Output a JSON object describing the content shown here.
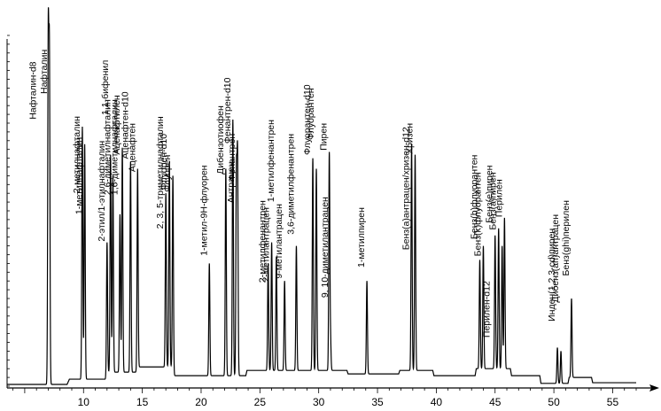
{
  "chart_data": {
    "type": "line",
    "title": "",
    "xlabel": "",
    "ylabel": "",
    "xlim": [
      3.5,
      57
    ],
    "ylim": [
      0,
      100
    ],
    "x_ticks": [
      {
        "value": 5,
        "label": ""
      },
      {
        "value": 10,
        "label": "10"
      },
      {
        "value": 15,
        "label": "15"
      },
      {
        "value": 20,
        "label": "20"
      },
      {
        "value": 25,
        "label": "25"
      },
      {
        "value": 30,
        "label": "30"
      },
      {
        "value": 35,
        "label": "35"
      },
      {
        "value": 40,
        "label": "40"
      },
      {
        "value": 45,
        "label": "45"
      },
      {
        "value": 50,
        "label": "50"
      },
      {
        "value": 55,
        "label": "55"
      }
    ],
    "grid": false,
    "baseline": [
      [
        3.5,
        0.5
      ],
      [
        8.6,
        0.5
      ],
      [
        8.8,
        2.0
      ],
      [
        11.9,
        2.0
      ],
      [
        12.0,
        4.0
      ],
      [
        14.5,
        4.0
      ],
      [
        14.6,
        5.5
      ],
      [
        17.5,
        5.5
      ],
      [
        17.7,
        3.0
      ],
      [
        23.8,
        3.0
      ],
      [
        23.9,
        4.5
      ],
      [
        32.4,
        4.5
      ],
      [
        32.5,
        3.5
      ],
      [
        36.8,
        3.5
      ],
      [
        36.9,
        4.5
      ],
      [
        39.7,
        4.5
      ],
      [
        39.8,
        3.0
      ],
      [
        43.3,
        3.0
      ],
      [
        43.4,
        5.0
      ],
      [
        46.3,
        5.0
      ],
      [
        46.4,
        3.0
      ],
      [
        48.8,
        3.0
      ],
      [
        48.9,
        0.8
      ],
      [
        51.2,
        0.8
      ],
      [
        51.3,
        2.5
      ],
      [
        53.2,
        2.5
      ],
      [
        53.3,
        1.0
      ],
      [
        57,
        1.0
      ]
    ],
    "peaks": [
      {
        "label": "Нафталин-d8",
        "rt": 7.0,
        "height": 98,
        "label_y": 100,
        "anchor": "top-left"
      },
      {
        "label": "Нафталин",
        "rt": 7.1,
        "height": 92,
        "label_y": 96,
        "anchor": "right"
      },
      {
        "label": "2-метилнафталин",
        "rt": 9.9,
        "height": 74,
        "label_y": 77,
        "anchor": "right"
      },
      {
        "label": "1-метилнафталин",
        "rt": 10.1,
        "height": 69,
        "label_y": 71,
        "anchor": "right"
      },
      {
        "label": "2-этил/1-этилнафталин",
        "rt": 12.0,
        "height": 41,
        "label_y": 70,
        "anchor": "right"
      },
      {
        "label": "1,1-бифенил",
        "rt": 12.3,
        "height": 66,
        "label_y": 93,
        "anchor": "right"
      },
      {
        "label": "2,6-диметилнафталин",
        "rt": 12.5,
        "height": 60,
        "label_y": 88,
        "anchor": "right"
      },
      {
        "label": "1,6-диметилнафталин",
        "rt": 13.1,
        "height": 49,
        "label_y": 85,
        "anchor": "right"
      },
      {
        "label": "Аценафтилен",
        "rt": 13.3,
        "height": 68,
        "label_y": 83,
        "anchor": "right"
      },
      {
        "label": "Аценафтен-d10",
        "rt": 14.0,
        "height": 64,
        "label_y": 84,
        "anchor": "right"
      },
      {
        "label": "Аценафтен",
        "rt": 14.6,
        "height": 62,
        "label_y": 75,
        "anchor": "right"
      },
      {
        "label": "2, 3, 5-триметилнафталин",
        "rt": 17.0,
        "height": 55,
        "label_y": 78,
        "anchor": "right"
      },
      {
        "label": "Флуорен-d10",
        "rt": 17.3,
        "height": 64,
        "label_y": 72,
        "anchor": "right"
      },
      {
        "label": "Флуорен",
        "rt": 17.6,
        "height": 60,
        "label_y": 66,
        "anchor": "right"
      },
      {
        "label": "1-метил-9Н-флуорен",
        "rt": 20.7,
        "height": 35,
        "label_y": 63,
        "anchor": "right"
      },
      {
        "label": "Дибензотиофен",
        "rt": 22.1,
        "height": 62,
        "label_y": 80,
        "anchor": "right"
      },
      {
        "label": "Фенантрен-d10",
        "rt": 22.7,
        "height": 76,
        "label_y": 88,
        "anchor": "right"
      },
      {
        "label": "Фенантрен",
        "rt": 23.1,
        "height": 64,
        "label_y": 72,
        "anchor": "right"
      },
      {
        "label": "Антрацен",
        "rt": 23.0,
        "height": 59,
        "label_y": 64,
        "anchor": "right"
      },
      {
        "label": "2-метилфенантрен",
        "rt": 25.7,
        "height": 35,
        "label_y": 53,
        "anchor": "right"
      },
      {
        "label": "2-метилантрацен",
        "rt": 26.0,
        "height": 41,
        "label_y": 51,
        "anchor": "right"
      },
      {
        "label": "1-метилфенантрен",
        "rt": 26.4,
        "height": 37,
        "label_y": 76,
        "anchor": "right"
      },
      {
        "label": "9-метилантрацен",
        "rt": 27.1,
        "height": 30,
        "label_y": 52,
        "anchor": "right"
      },
      {
        "label": "3,6-диметилфенантрен",
        "rt": 28.1,
        "height": 40,
        "label_y": 72,
        "anchor": "right"
      },
      {
        "label": "Флуорантен-d10",
        "rt": 29.5,
        "height": 65,
        "label_y": 86,
        "anchor": "right"
      },
      {
        "label": "Флуорантен",
        "rt": 29.8,
        "height": 62,
        "label_y": 85,
        "anchor": "right"
      },
      {
        "label": "Пирен",
        "rt": 30.9,
        "height": 66,
        "label_y": 75,
        "anchor": "right"
      },
      {
        "label": "9, 10-диметилантрацен",
        "rt": 31.0,
        "height": 14,
        "label_y": 54,
        "anchor": "right"
      },
      {
        "label": "1-метилпирен",
        "rt": 34.1,
        "height": 30,
        "label_y": 51,
        "anchor": "right"
      },
      {
        "label": "Бенз(а)антрацен/хризен-d12",
        "rt": 37.9,
        "height": 69,
        "label_y": 98,
        "anchor": "right"
      },
      {
        "label": "Хризен",
        "rt": 38.2,
        "height": 66,
        "label_y": 75,
        "anchor": "right"
      },
      {
        "label": "Бенз(b)флуорантен",
        "rt": 43.7,
        "height": 36,
        "label_y": 66,
        "anchor": "right"
      },
      {
        "label": "Бенз(k)флуорантен",
        "rt": 44.0,
        "height": 40,
        "label_y": 61,
        "anchor": "right"
      },
      {
        "label": "Бенз(е)пирен",
        "rt": 45.0,
        "height": 43,
        "label_y": 63,
        "anchor": "right"
      },
      {
        "label": "Бенз(а)пирен",
        "rt": 45.3,
        "height": 45,
        "label_y": 61,
        "anchor": "right"
      },
      {
        "label": "Перилен",
        "rt": 45.8,
        "height": 48,
        "label_y": 59,
        "anchor": "right"
      },
      {
        "label": "Перилен-d12",
        "rt": 45.6,
        "height": 40,
        "label_y": 30,
        "anchor": "left"
      },
      {
        "label": "Инден(1,2,3-cd)пирен",
        "rt": 50.3,
        "height": 11,
        "label_y": 45,
        "anchor": "right"
      },
      {
        "label": "Дибенз(ah)антрацен",
        "rt": 50.6,
        "height": 10,
        "label_y": 49,
        "anchor": "right"
      },
      {
        "label": "Бенз(ghi)перилен",
        "rt": 51.5,
        "height": 25,
        "label_y": 53,
        "anchor": "right"
      }
    ]
  }
}
